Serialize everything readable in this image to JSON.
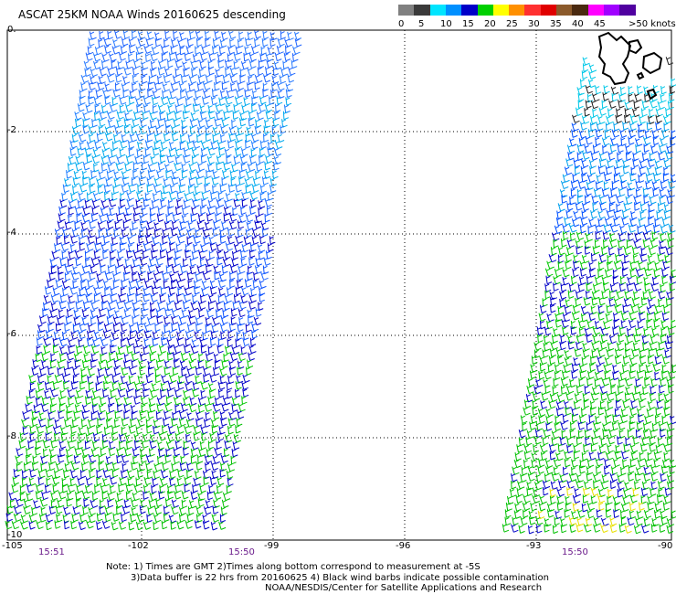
{
  "title": "ASCAT 25KM NOAA Winds 20160625 descending",
  "legend": {
    "labels": [
      "0",
      "5",
      "10",
      "15",
      "20",
      "25",
      "30",
      "35",
      "40",
      "45",
      ">50 knots"
    ],
    "colors": [
      "#808080",
      "#3a3a3a",
      "#00e5ff",
      "#0090ff",
      "#0000c8",
      "#00d000",
      "#ffff00",
      "#ff9000",
      "#ff3030",
      "#e00000",
      "#8b5a2b",
      "#4a2a10",
      "#ff00ff",
      "#a000ff",
      "#5000a0"
    ]
  },
  "axes": {
    "y_labels": [
      "0.",
      "-2",
      "-4",
      "-6",
      "-8",
      "-10"
    ],
    "x_labels": [
      "-105",
      "-102",
      "-99",
      "-96",
      "-93",
      "-90"
    ]
  },
  "times": [
    "15:51",
    "15:50",
    "15:50"
  ],
  "notes": {
    "line1": "Note: 1) Times are GMT 2)Times along bottom correspond to measurement at -5S",
    "line2": "3)Data buffer is 22 hrs from 20160625 4) Black wind barbs indicate possible contamination",
    "line3": "NOAA/NESDIS/Center for Satellite Applications and Research"
  }
}
